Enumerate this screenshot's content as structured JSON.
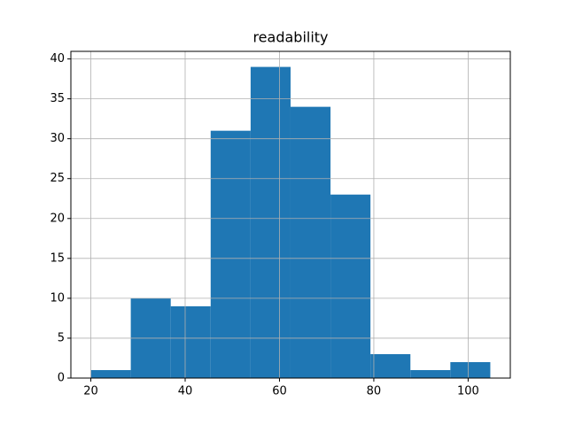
{
  "chart_data": {
    "type": "histogram",
    "title": "readability",
    "bins": [
      20,
      28.47,
      36.94,
      45.41,
      53.88,
      62.35,
      70.82,
      79.29,
      87.76,
      96.23,
      104.7
    ],
    "values": [
      1,
      10,
      9,
      31,
      39,
      34,
      23,
      3,
      1,
      2
    ],
    "color": "#1f77b4",
    "xlim": [
      15.77,
      108.94
    ],
    "xticks": [
      20,
      40,
      60,
      80,
      100
    ],
    "ylim": [
      0,
      40.95
    ],
    "yticks": [
      0,
      5,
      10,
      15,
      20,
      25,
      30,
      35,
      40
    ],
    "grid": true
  }
}
